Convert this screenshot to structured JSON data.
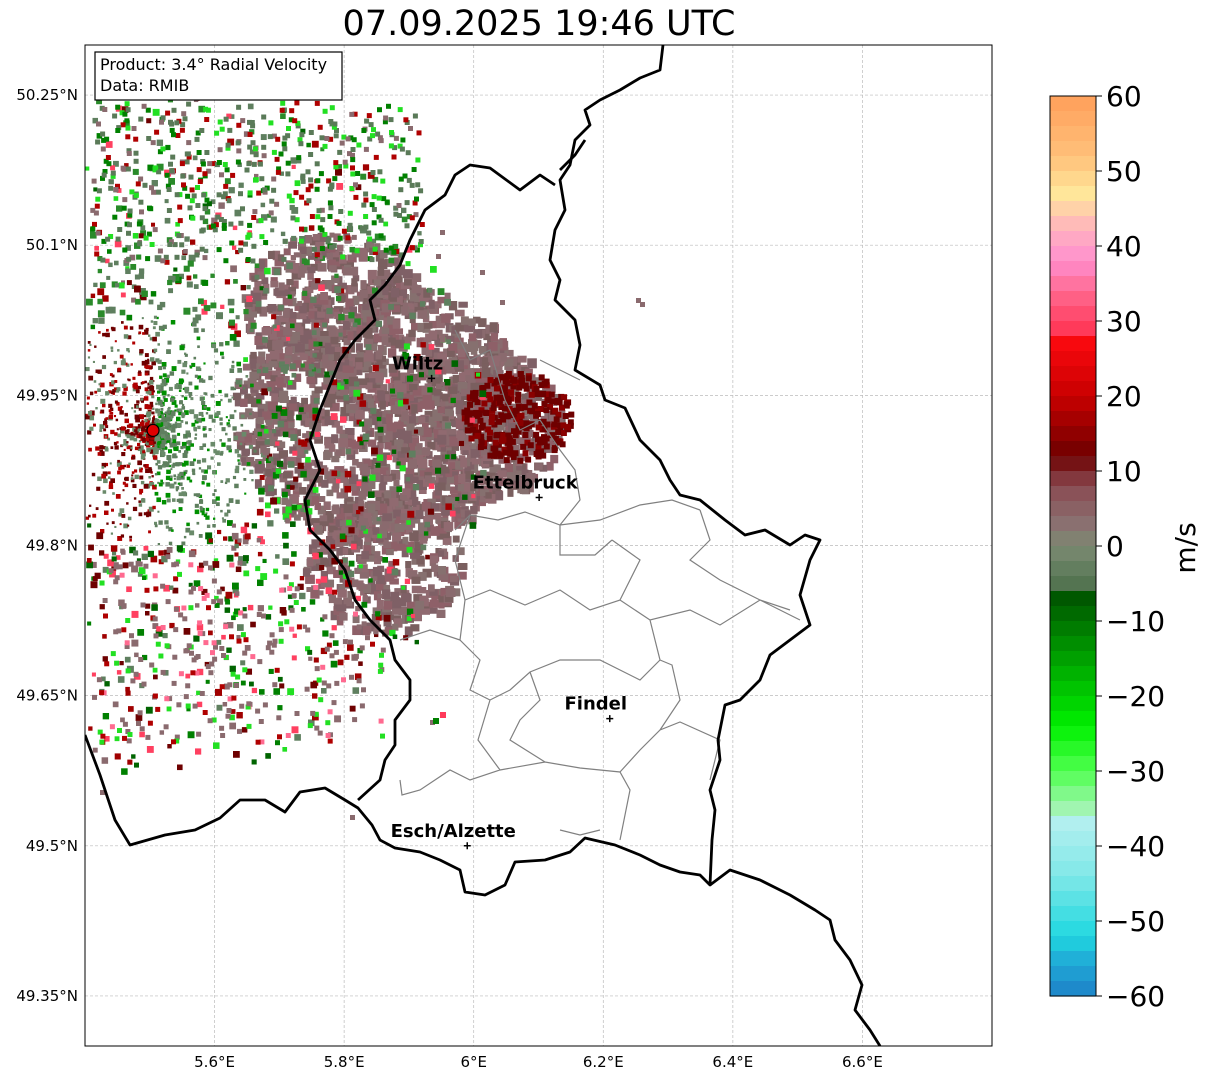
{
  "title": "07.09.2025 19:46 UTC",
  "info_box": {
    "product": "Product: 3.4° Radial Velocity",
    "data_source": "Data: RMIB"
  },
  "map": {
    "lon_range": [
      5.4,
      6.8
    ],
    "lat_range": [
      49.3,
      50.3
    ],
    "lon_ticks": [
      "5.6°E",
      "5.8°E",
      "6°E",
      "6.2°E",
      "6.4°E",
      "6.6°E"
    ],
    "lat_ticks": [
      "50.25°N",
      "50.1°N",
      "49.95°N",
      "49.8°N",
      "49.65°N",
      "49.5°N",
      "49.35°N"
    ],
    "gridlines": true,
    "radar_site": {
      "lon": 5.505,
      "lat": 49.915,
      "icon": "radar-site-marker"
    },
    "cities": [
      {
        "name": "Wiltz",
        "lon": 5.935,
        "lat": 49.967
      },
      {
        "name": "Ettelbruck",
        "lon": 6.101,
        "lat": 49.848
      },
      {
        "name": "Findel",
        "lon": 6.21,
        "lat": 49.627
      },
      {
        "name": "Esch/Alzette",
        "lon": 5.99,
        "lat": 49.5
      }
    ]
  },
  "colorbar": {
    "unit": "m/s",
    "min": -60,
    "max": 60,
    "tick_labels": [
      "60",
      "50",
      "40",
      "30",
      "20",
      "10",
      "0",
      "−10",
      "−20",
      "−30",
      "−40",
      "−50",
      "−60"
    ],
    "stops": [
      {
        "v": 60,
        "color": "#ff9f5a"
      },
      {
        "v": 52,
        "color": "#ffc07a"
      },
      {
        "v": 47,
        "color": "#ffe69a"
      },
      {
        "v": 45,
        "color": "#ffd2a8"
      },
      {
        "v": 42,
        "color": "#ffb0c0"
      },
      {
        "v": 38,
        "color": "#ff8ecf"
      },
      {
        "v": 34,
        "color": "#ff6a90"
      },
      {
        "v": 29,
        "color": "#ff3a5a"
      },
      {
        "v": 28,
        "color": "#ff0a10"
      },
      {
        "v": 20,
        "color": "#c80000"
      },
      {
        "v": 12,
        "color": "#6e0000"
      },
      {
        "v": 8,
        "color": "#8a4a52"
      },
      {
        "v": 3,
        "color": "#8a7070"
      },
      {
        "v": 0,
        "color": "#7d8a72"
      },
      {
        "v": -4,
        "color": "#5a7a58"
      },
      {
        "v": -6,
        "color": "#4e6e4a"
      },
      {
        "v": -7,
        "color": "#005800"
      },
      {
        "v": -15,
        "color": "#00a000"
      },
      {
        "v": -24,
        "color": "#00f000"
      },
      {
        "v": -30,
        "color": "#50ff50"
      },
      {
        "v": -35,
        "color": "#a0f5b0"
      },
      {
        "v": -36,
        "color": "#b8f0f0"
      },
      {
        "v": -44,
        "color": "#80e8e8"
      },
      {
        "v": -52,
        "color": "#20d8e0"
      },
      {
        "v": -55,
        "color": "#20b0d8"
      },
      {
        "v": -60,
        "color": "#1e80c8"
      }
    ]
  },
  "colors": {
    "receding_dark": "#6e0000",
    "receding_red": "#d80000",
    "near_zero_brown": "#8a6a6e",
    "near_zero_green": "#5f7f5f",
    "approaching_green": "#008000",
    "approaching_bright": "#22e022",
    "border": "#000000",
    "canton_border": "#808080",
    "radar_site": "#e00000"
  }
}
